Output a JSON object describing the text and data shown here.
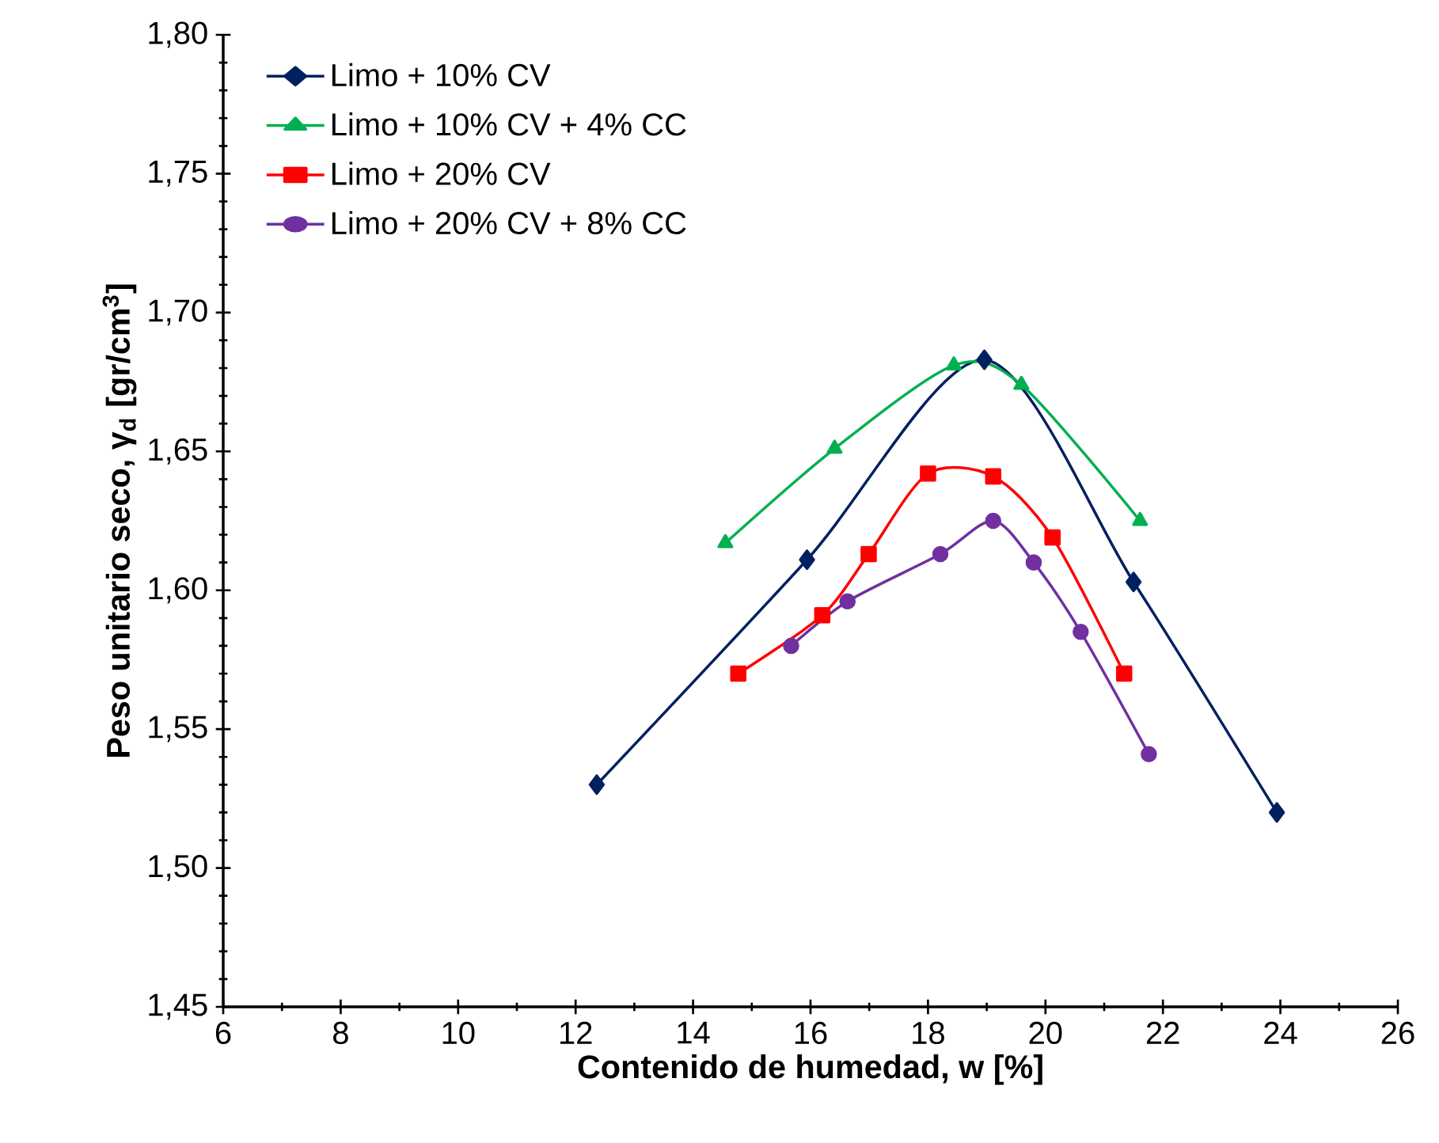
{
  "chart_data": {
    "type": "line",
    "xlabel": "Contenido de humedad, w [%]",
    "ylabel": "Peso unitario seco, γ$_{d}$  [gr/cm$^{3}$]",
    "xlim": [
      6,
      26
    ],
    "xticks": [
      6,
      8,
      10,
      12,
      14,
      16,
      18,
      20,
      22,
      24,
      26
    ],
    "ylim": [
      1.45,
      1.8
    ],
    "yticks": [
      {
        "value": 1.45,
        "label": "1,45"
      },
      {
        "value": 1.5,
        "label": "1,50"
      },
      {
        "value": 1.55,
        "label": "1,55"
      },
      {
        "value": 1.6,
        "label": "1,60"
      },
      {
        "value": 1.65,
        "label": "1,65"
      },
      {
        "value": 1.7,
        "label": "1,70"
      },
      {
        "value": 1.75,
        "label": "1,75"
      },
      {
        "value": 1.8,
        "label": "1,80"
      }
    ],
    "grid": false,
    "legend": "top left",
    "line_style": "solid",
    "series": [
      {
        "name": "Limo + 10% CV",
        "color": "#002060",
        "marker": "diamond",
        "x": [
          12.36,
          15.94,
          18.96,
          21.5,
          23.94
        ],
        "values": [
          1.53,
          1.611,
          1.683,
          1.603,
          1.52
        ]
      },
      {
        "name": "Limo + 10% CV + 4% CC",
        "color": "#00b050",
        "marker": "triangle",
        "x": [
          14.55,
          16.41,
          18.44,
          19.59,
          21.61
        ],
        "values": [
          1.617,
          1.651,
          1.681,
          1.674,
          1.625
        ]
      },
      {
        "name": "Limo + 20% CV",
        "color": "#ff0000",
        "marker": "square",
        "x": [
          14.77,
          16.2,
          16.99,
          18.0,
          19.11,
          20.12,
          21.34
        ],
        "values": [
          1.57,
          1.591,
          1.613,
          1.642,
          1.641,
          1.619,
          1.57
        ]
      },
      {
        "name": "Limo + 20% CV + 8% CC",
        "color": "#7030a0",
        "marker": "circle",
        "x": [
          15.67,
          16.63,
          18.21,
          19.11,
          19.8,
          20.6,
          21.76
        ],
        "values": [
          1.58,
          1.596,
          1.613,
          1.625,
          1.61,
          1.585,
          1.541
        ]
      }
    ]
  }
}
